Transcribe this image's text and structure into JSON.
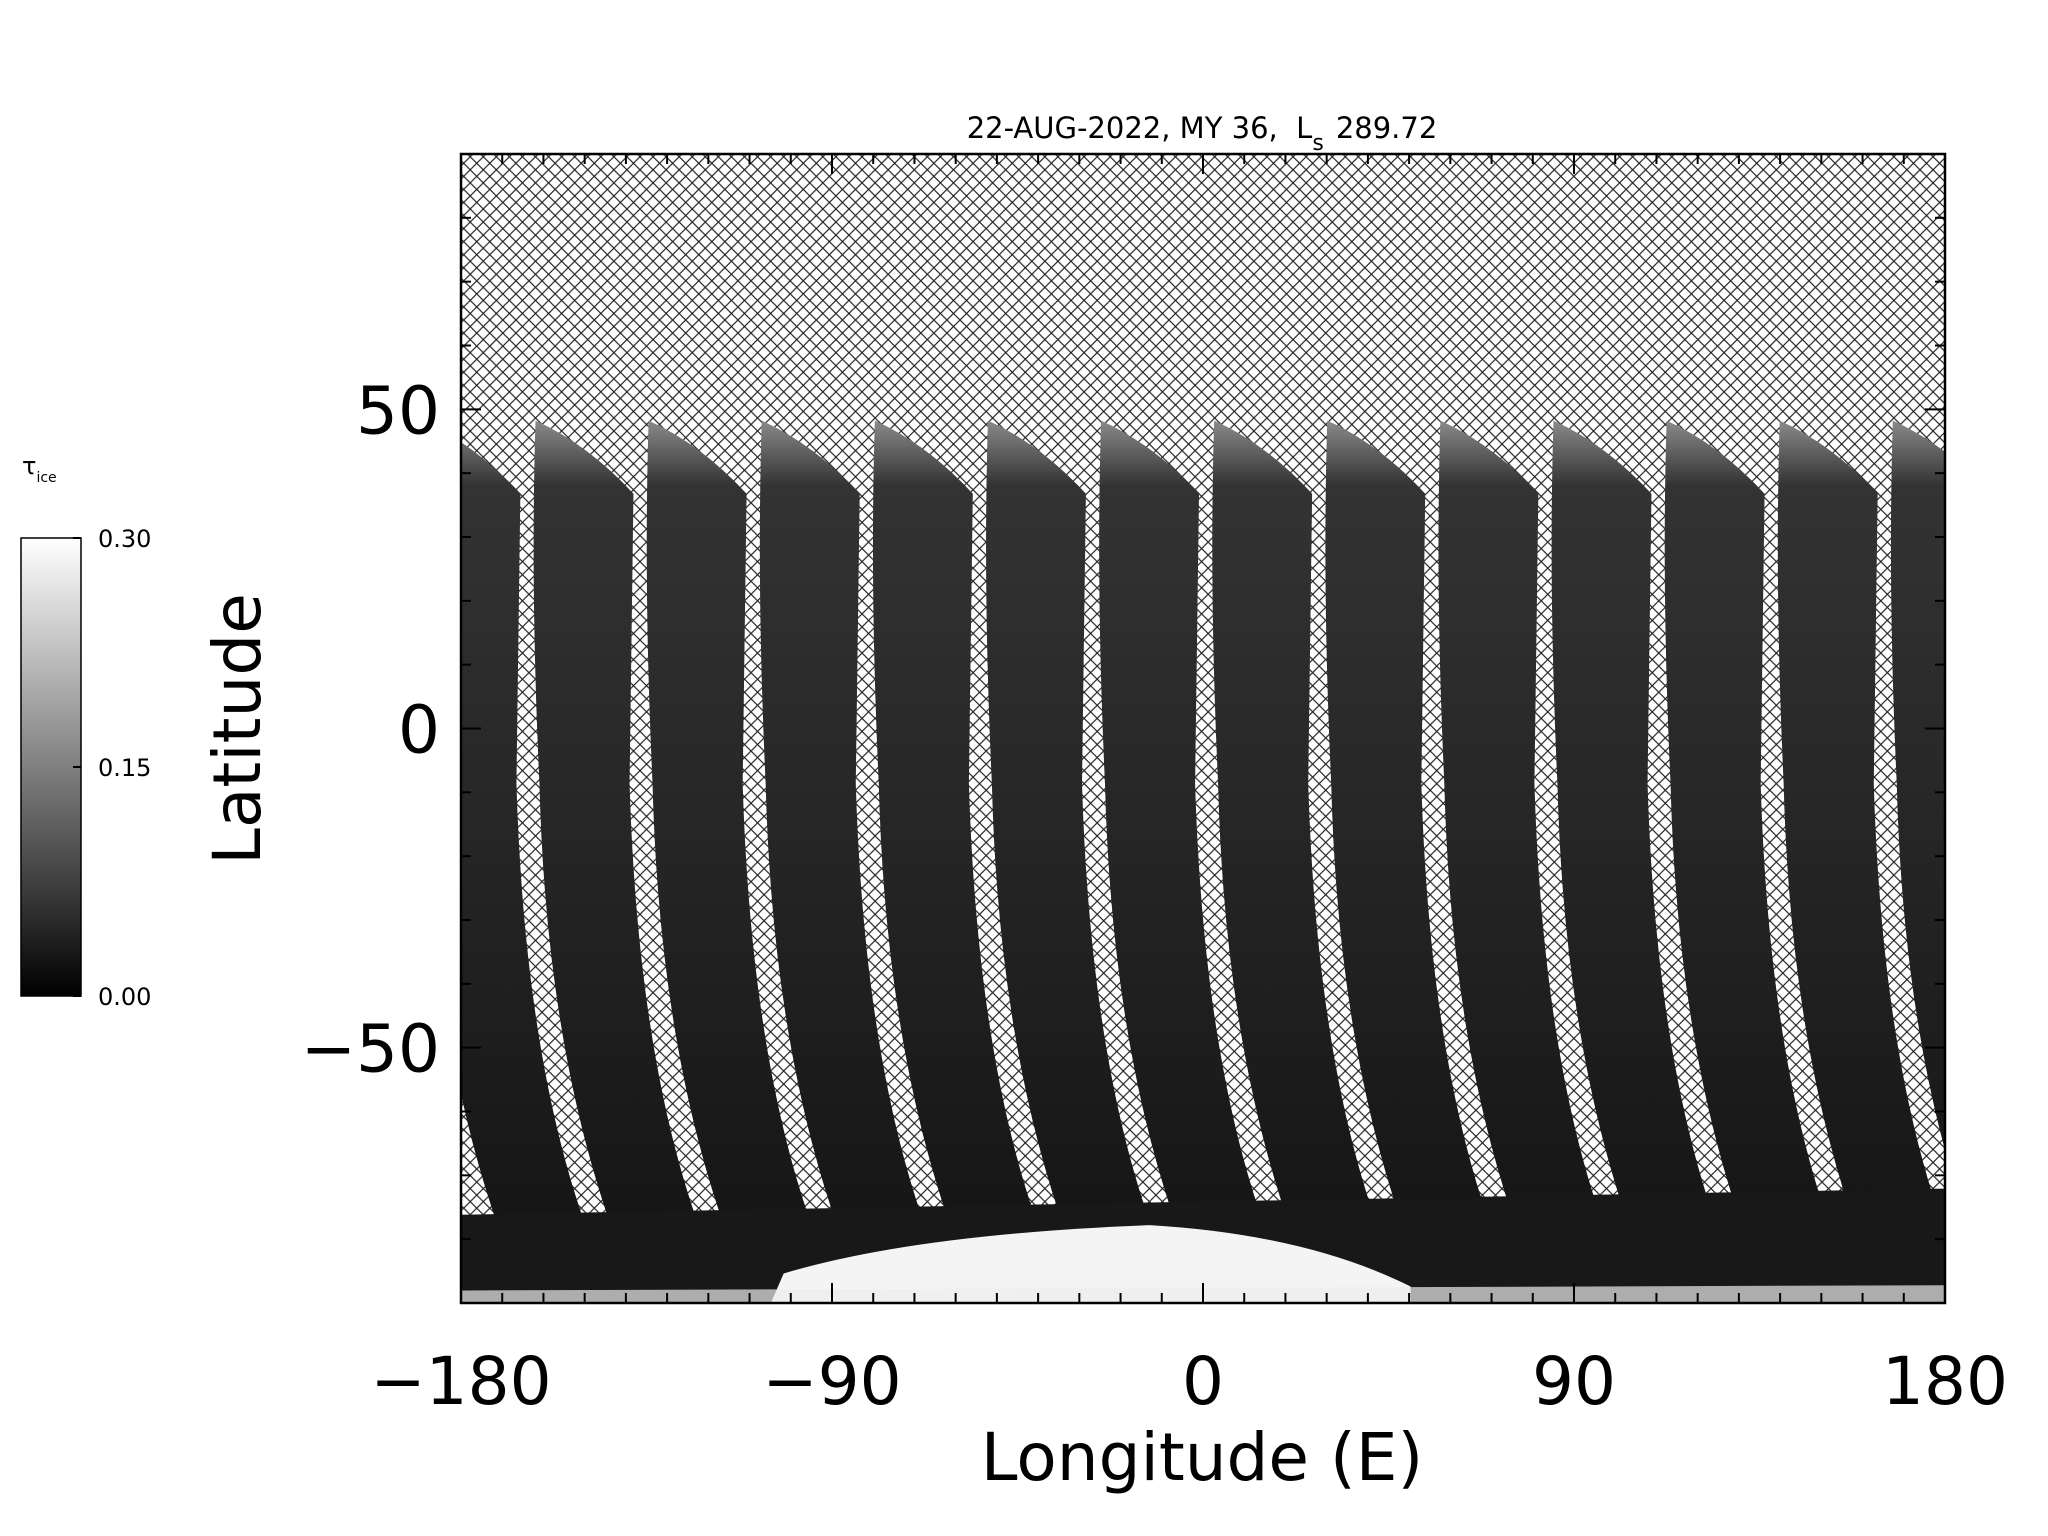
{
  "chart_data": {
    "type": "map",
    "title": {
      "text": "22-AUG-2022, MY 36,  L",
      "subscript": "s",
      "tail": "289.72"
    },
    "x_label": "Longitude (E)",
    "y_label": "Latitude",
    "xlim": [
      -180,
      180
    ],
    "ylim": [
      -90,
      90
    ],
    "xticks": [
      {
        "value": -180,
        "label": "−180"
      },
      {
        "value": -90,
        "label": "−90"
      },
      0,
      90,
      180
    ],
    "yticks": [
      {
        "value": -50,
        "label": "−50"
      },
      0,
      50
    ],
    "xminorticks": [
      -170,
      -160,
      -150,
      -140,
      -130,
      -120,
      -110,
      -100,
      -80,
      -70,
      -60,
      -50,
      -40,
      -30,
      -20,
      -10,
      10,
      20,
      30,
      40,
      50,
      60,
      70,
      80,
      100,
      110,
      120,
      130,
      140,
      150,
      160,
      170
    ],
    "yminorticks": [
      -80,
      -70,
      -60,
      -40,
      -30,
      -20,
      -10,
      10,
      20,
      30,
      40,
      60,
      70,
      80
    ],
    "colorbar": {
      "label": "τ",
      "label_subscript": "ice",
      "clim": [
        0,
        0.3
      ],
      "ticks": [
        {
          "value": 0,
          "label": "0.00"
        },
        {
          "value": 0.15,
          "label": "0.15"
        },
        {
          "value": 0.3,
          "label": "0.30"
        }
      ],
      "colors": [
        "#000000",
        "#ffffff"
      ]
    }
  }
}
